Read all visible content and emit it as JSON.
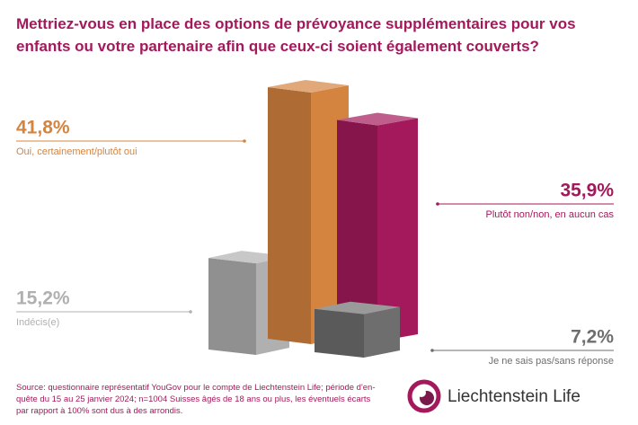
{
  "chart_data": {
    "type": "bar3d",
    "title": "Mettriez-vous en place des options de prévoyance supplémentaires pour vos enfants ou votre partenaire afin que ceux-ci soient également couverts?",
    "categories": [
      "Oui, certainement/plutôt oui",
      "Plutôt non/non, en aucun cas",
      "Indécis(e)",
      "Je ne sais pas/sans réponse"
    ],
    "values": [
      41.8,
      35.9,
      15.2,
      7.2
    ],
    "value_labels": [
      "41,8%",
      "35,9%",
      "15,2%",
      "7,2%"
    ],
    "colors": [
      "#d4843f",
      "#a3195b",
      "#b0b0b0",
      "#6e6e6e"
    ],
    "source": "Source: questionnaire représentatif YouGov pour le compte de Liechtenstein Life; période d'en-quête du 15 au 25 janvier 2024; n=1004 Suisses âgés de 18 ans ou plus, les éventuels écarts par rapport à 100% sont dus à des arrondis.",
    "logo": "Liechtenstein Life"
  }
}
